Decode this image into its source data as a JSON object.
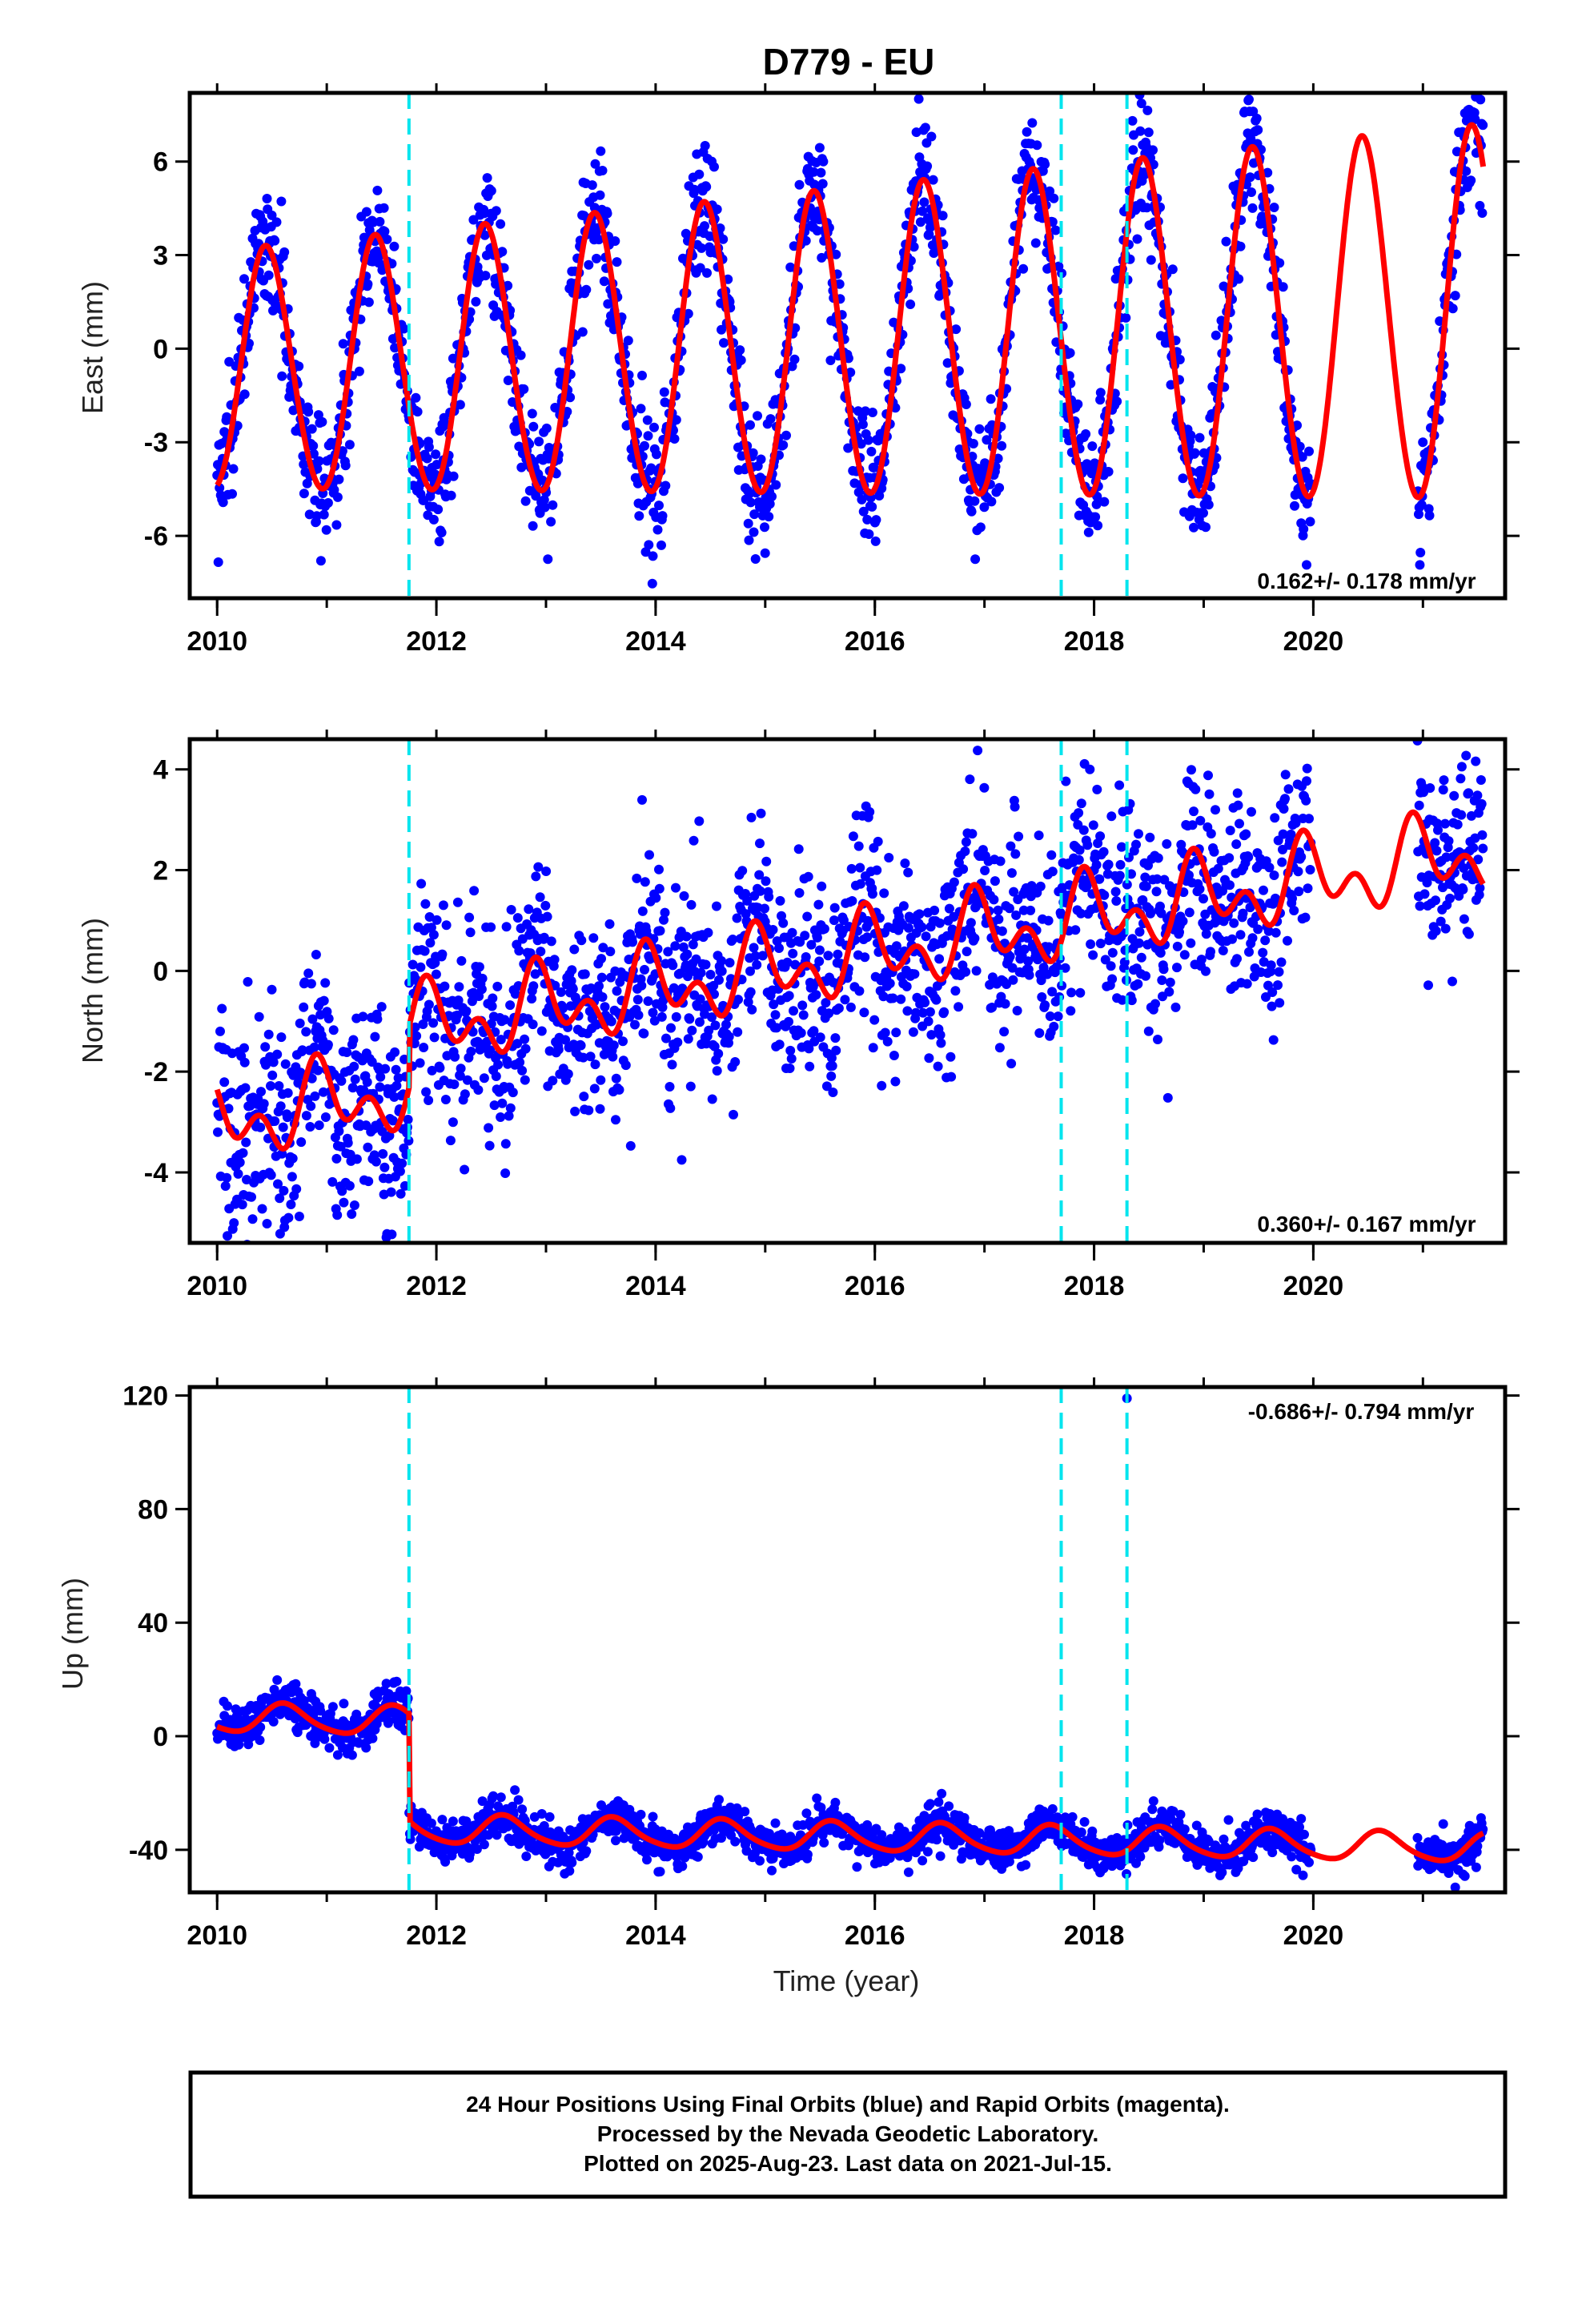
{
  "title": "D779 - EU",
  "colors": {
    "data_points": "#0000ff",
    "model_fit": "#ff0000",
    "event_lines": "#00e5ee"
  },
  "events": [
    2011.75,
    2017.7,
    2018.3
  ],
  "chart_data": [
    {
      "type": "scatter",
      "id": "east",
      "ylabel": "East (mm)",
      "xlim": [
        2009.75,
        2021.75
      ],
      "ylim": [
        -8,
        8.2
      ],
      "xticks": [
        2010,
        2012,
        2014,
        2016,
        2018,
        2020
      ],
      "yticks": [
        -6,
        -3,
        0,
        3,
        6
      ],
      "ytick_labels": [
        "-6",
        "-3",
        "0",
        "3",
        "6"
      ],
      "rate": "0.162+/- 0.178 mm/yr",
      "observation_segments": [
        [
          2010.0,
          2019.98
        ],
        [
          2020.95,
          2021.55
        ]
      ],
      "model": {
        "annual_amplitude": 3.8,
        "annual_peak": 2010.45,
        "semiannual_amplitude": 0.2,
        "amplitude_trend_per_year": 0.05,
        "trend_mm_per_yr": 0.162,
        "reference_epoch": 2015.0,
        "offsets": []
      },
      "scatter_std": 1.0,
      "series": [
        {
          "name": "24 Hour Positions",
          "kind": "points"
        },
        {
          "name": "Model",
          "kind": "line"
        }
      ]
    },
    {
      "type": "scatter",
      "id": "north",
      "ylabel": "North (mm)",
      "xlim": [
        2009.75,
        2021.75
      ],
      "ylim": [
        -5.4,
        4.6
      ],
      "xticks": [
        2010,
        2012,
        2014,
        2016,
        2018,
        2020
      ],
      "yticks": [
        -4,
        -2,
        0,
        2,
        4
      ],
      "ytick_labels": [
        "-4",
        "-2",
        "0",
        "2",
        "4"
      ],
      "rate": "0.360+/- 0.167 mm/yr",
      "observation_segments": [
        [
          2010.0,
          2019.98
        ],
        [
          2020.95,
          2021.55
        ]
      ],
      "model": {
        "annual_amplitude": 0.55,
        "annual_peak": 2010.95,
        "semiannual_amplitude": 0.5,
        "amplitude_trend_per_year": 0.0,
        "trend_mm_per_yr": 0.36,
        "reference_epoch": 2015.0,
        "offsets": [
          [
            2011.75,
            -1.2
          ]
        ]
      },
      "scatter_std": 1.0,
      "series": [
        {
          "name": "24 Hour Positions",
          "kind": "points"
        },
        {
          "name": "Model",
          "kind": "line"
        }
      ]
    },
    {
      "type": "scatter",
      "id": "up",
      "ylabel": "Up (mm)",
      "xlim": [
        2009.75,
        2021.75
      ],
      "ylim": [
        -55,
        123
      ],
      "xticks": [
        2010,
        2012,
        2014,
        2016,
        2018,
        2020
      ],
      "xlabel": "Time (year)",
      "yticks": [
        -40,
        0,
        40,
        80,
        120
      ],
      "ytick_labels": [
        "-40",
        "0",
        "40",
        "80",
        "120"
      ],
      "rate": "-0.686+/- 0.794 mm/yr",
      "observation_segments": [
        [
          2010.0,
          2019.98
        ],
        [
          2020.95,
          2021.55
        ]
      ],
      "outlier": {
        "x": 2018.3,
        "y": 119
      },
      "model": {
        "annual_amplitude": 5.0,
        "annual_peak": 2010.62,
        "semiannual_amplitude": 0.8,
        "amplitude_trend_per_year": 0.0,
        "trend_mm_per_yr": -0.686,
        "reference_epoch": 2015.0,
        "offsets": [
          [
            2011.75,
            38
          ]
        ],
        "base": -35
      },
      "scatter_std": 3.5,
      "series": [
        {
          "name": "24 Hour Positions",
          "kind": "points"
        },
        {
          "name": "Model",
          "kind": "line"
        }
      ]
    }
  ],
  "footer": {
    "line1": "24 Hour Positions Using Final Orbits (blue) and Rapid Orbits (magenta).",
    "line2": "Processed by the Nevada Geodetic Laboratory.",
    "line3": "Plotted on 2025-Aug-23. Last data on 2021-Jul-15."
  }
}
